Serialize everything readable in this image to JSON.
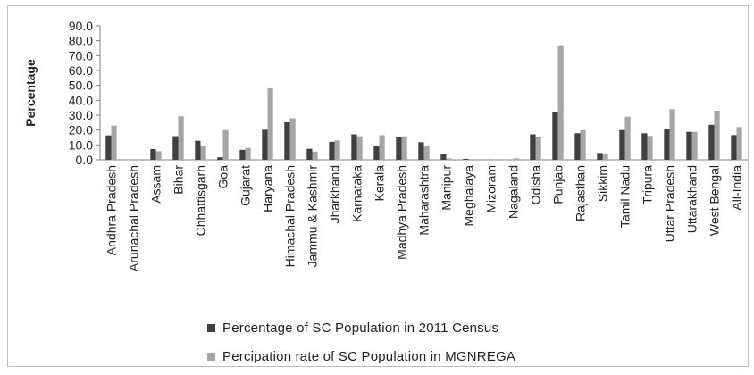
{
  "chart_data": {
    "type": "bar",
    "title": "",
    "xlabel": "",
    "ylabel": "Percentage",
    "ylim": [
      0,
      90
    ],
    "yticks": [
      "0.0",
      "10.0",
      "20.0",
      "30.0",
      "40.0",
      "50.0",
      "60.0",
      "70.0",
      "80.0",
      "90.0"
    ],
    "categories": [
      "Andhra Pradesh",
      "Arunachal Pradesh",
      "Assam",
      "Bihar",
      "Chhattisgarh",
      "Goa",
      "Gujarat",
      "Haryana",
      "Himachal Pradesh",
      "Jammu & Kashmir",
      "Jharkhand",
      "Karnataka",
      "Kerala",
      "Madhya Pradesh",
      "Maharashtra",
      "Manipur",
      "Meghalaya",
      "Mizoram",
      "Nagaland",
      "Odisha",
      "Punjab",
      "Rajasthan",
      "Sikkim",
      "Tamil Nadu",
      "Tripura",
      "Uttar Pradesh",
      "Uttarakhand",
      "West Bengal",
      "All-India"
    ],
    "series": [
      {
        "name": "Percentage of SC Population in 2011 Census",
        "color": "#404040",
        "values": [
          16.4,
          0.0,
          7.2,
          15.9,
          12.8,
          1.7,
          6.7,
          20.2,
          25.2,
          7.4,
          12.1,
          17.1,
          9.1,
          15.6,
          11.8,
          3.8,
          0.6,
          0.1,
          0.0,
          17.1,
          31.9,
          17.8,
          4.6,
          20.0,
          17.8,
          20.7,
          18.8,
          23.5,
          16.6
        ]
      },
      {
        "name": "Percipation rate of SC Population in MGNREGA",
        "color": "#a6a6a6",
        "values": [
          23.0,
          0.0,
          5.8,
          29.3,
          9.6,
          20.0,
          8.0,
          48.0,
          27.9,
          5.5,
          13.0,
          15.8,
          16.5,
          15.8,
          9.0,
          1.0,
          0.5,
          0.0,
          1.0,
          15.4,
          77.0,
          19.8,
          4.0,
          29.0,
          16.0,
          34.0,
          18.8,
          33.0,
          22.0
        ]
      }
    ],
    "grid": false,
    "legend": "bottom"
  }
}
